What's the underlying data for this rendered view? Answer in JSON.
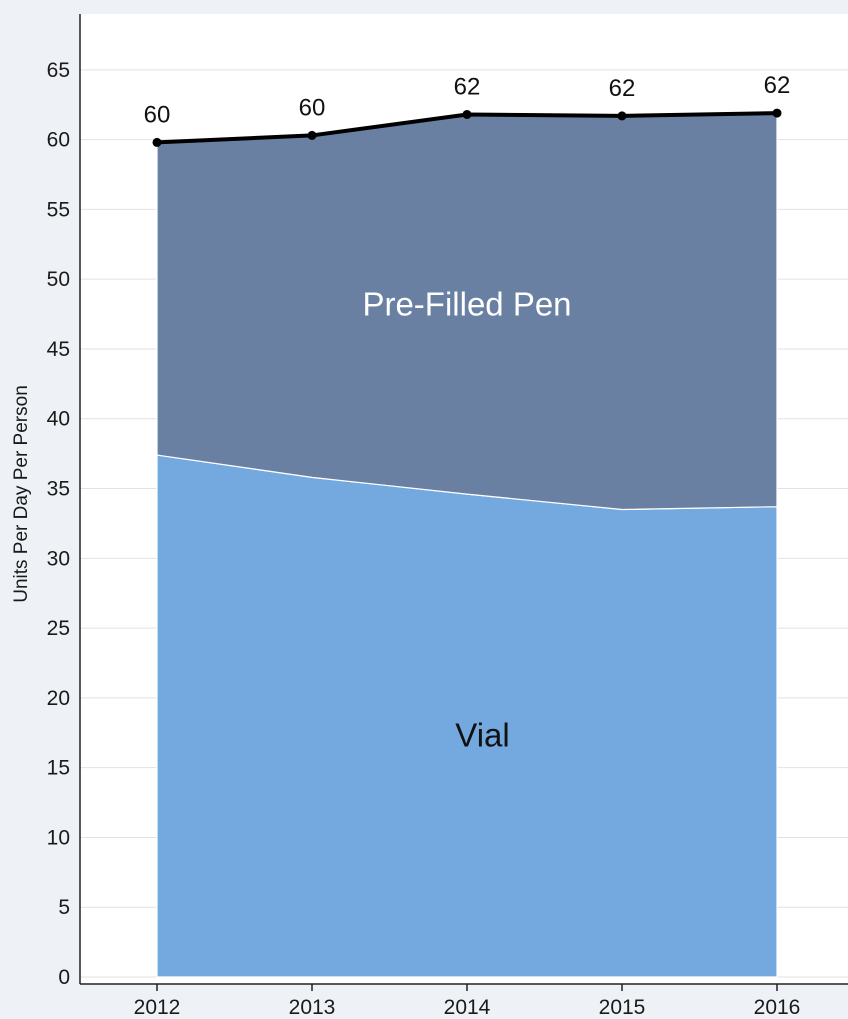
{
  "chart_data": {
    "type": "area",
    "stacked": true,
    "ylabel": "Units Per Day Per Person",
    "xlabel": "",
    "x": [
      "2012",
      "2013",
      "2014",
      "2015",
      "2016"
    ],
    "ylim": [
      -0.5,
      69
    ],
    "yticks": [
      0,
      5,
      10,
      15,
      20,
      25,
      30,
      35,
      40,
      45,
      50,
      55,
      60,
      65
    ],
    "grid": true,
    "series": [
      {
        "name": "Vial",
        "values": [
          37.4,
          35.8,
          34.6,
          33.5,
          33.7
        ],
        "color": "#74a9e0",
        "label_color": "#111111"
      },
      {
        "name": "Pre-Filled Pen",
        "values": [
          22.4,
          24.5,
          27.2,
          28.2,
          28.2
        ],
        "color": "#6a80a3",
        "label_color": "#ffffff"
      }
    ],
    "total": {
      "values": [
        59.8,
        60.3,
        61.8,
        61.7,
        61.9
      ],
      "labels": [
        "60",
        "60",
        "62",
        "62",
        "62"
      ],
      "color": "#000000"
    }
  }
}
